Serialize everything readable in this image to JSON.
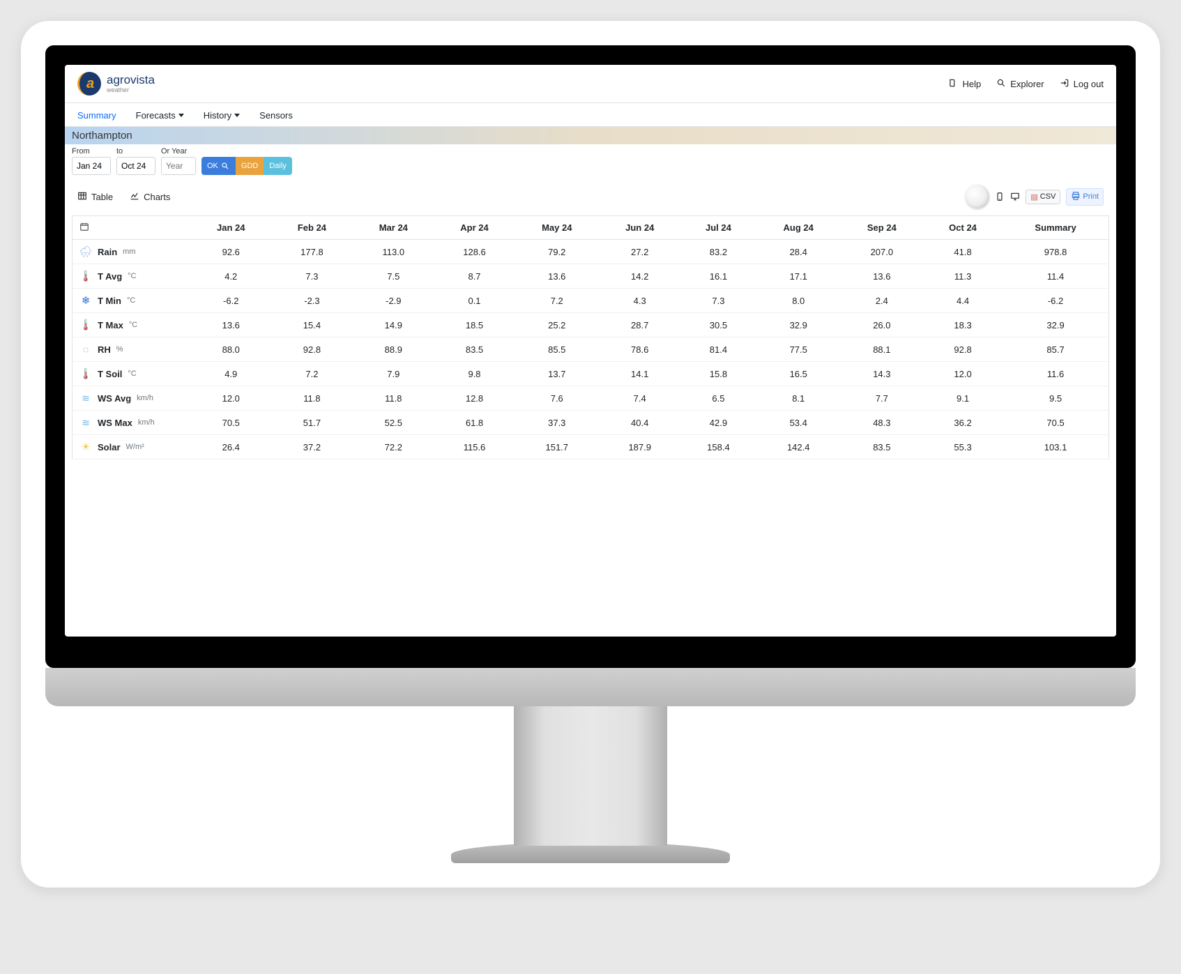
{
  "brand": {
    "name": "agrovista",
    "sub": "weather"
  },
  "header": {
    "help": "Help",
    "explorer": "Explorer",
    "logout": "Log out"
  },
  "nav": {
    "summary": "Summary",
    "forecasts": "Forecasts",
    "history": "History",
    "sensors": "Sensors"
  },
  "location": "Northampton",
  "filters": {
    "from_label": "From",
    "to_label": "to",
    "year_label": "Or Year",
    "from_value": "Jan 24",
    "to_value": "Oct 24",
    "year_placeholder": "Year",
    "ok": "OK",
    "gdd": "GDD",
    "daily": "Daily"
  },
  "views": {
    "table": "Table",
    "charts": "Charts"
  },
  "toolbar": {
    "csv": "CSV",
    "print": "Print"
  },
  "colors": {
    "brand_navy": "#1a3a6e",
    "brand_gold": "#f0a020",
    "btn_blue": "#3b7ddd",
    "btn_orange": "#e8a33d",
    "btn_cyan": "#5bc0de",
    "link_blue": "#0d6efd",
    "border": "#dee2e6",
    "location_grad_start": "#b8d4f0",
    "location_grad_end": "#f0e8d8"
  },
  "table": {
    "columns": [
      "Jan 24",
      "Feb 24",
      "Mar 24",
      "Apr 24",
      "May 24",
      "Jun 24",
      "Jul 24",
      "Aug 24",
      "Sep 24",
      "Oct 24",
      "Summary"
    ],
    "rows": [
      {
        "icon": "rain",
        "metric": "Rain",
        "unit": "mm",
        "values": [
          "92.6",
          "177.8",
          "113.0",
          "128.6",
          "79.2",
          "27.2",
          "83.2",
          "28.4",
          "207.0",
          "41.8",
          "978.8"
        ]
      },
      {
        "icon": "therm-red",
        "metric": "T Avg",
        "unit": "°C",
        "values": [
          "4.2",
          "7.3",
          "7.5",
          "8.7",
          "13.6",
          "14.2",
          "16.1",
          "17.1",
          "13.6",
          "11.3",
          "11.4"
        ]
      },
      {
        "icon": "snow",
        "metric": "T Min",
        "unit": "°C",
        "values": [
          "-6.2",
          "-2.3",
          "-2.9",
          "0.1",
          "7.2",
          "4.3",
          "7.3",
          "8.0",
          "2.4",
          "4.4",
          "-6.2"
        ]
      },
      {
        "icon": "therm-red",
        "metric": "T Max",
        "unit": "°C",
        "values": [
          "13.6",
          "15.4",
          "14.9",
          "18.5",
          "25.2",
          "28.7",
          "30.5",
          "32.9",
          "26.0",
          "18.3",
          "32.9"
        ]
      },
      {
        "icon": "drop",
        "metric": "RH",
        "unit": "%",
        "values": [
          "88.0",
          "92.8",
          "88.9",
          "83.5",
          "85.5",
          "78.6",
          "81.4",
          "77.5",
          "88.1",
          "92.8",
          "85.7"
        ]
      },
      {
        "icon": "soil",
        "metric": "T Soil",
        "unit": "°C",
        "values": [
          "4.9",
          "7.2",
          "7.9",
          "9.8",
          "13.7",
          "14.1",
          "15.8",
          "16.5",
          "14.3",
          "12.0",
          "11.6"
        ]
      },
      {
        "icon": "wind",
        "metric": "WS Avg",
        "unit": "km/h",
        "values": [
          "12.0",
          "11.8",
          "11.8",
          "12.8",
          "7.6",
          "7.4",
          "6.5",
          "8.1",
          "7.7",
          "9.1",
          "9.5"
        ]
      },
      {
        "icon": "wind",
        "metric": "WS Max",
        "unit": "km/h",
        "values": [
          "70.5",
          "51.7",
          "52.5",
          "61.8",
          "37.3",
          "40.4",
          "42.9",
          "53.4",
          "48.3",
          "36.2",
          "70.5"
        ]
      },
      {
        "icon": "sun",
        "metric": "Solar",
        "unit": "W/m²",
        "values": [
          "26.4",
          "37.2",
          "72.2",
          "115.6",
          "151.7",
          "187.9",
          "158.4",
          "142.4",
          "83.5",
          "55.3",
          "103.1"
        ]
      }
    ]
  }
}
